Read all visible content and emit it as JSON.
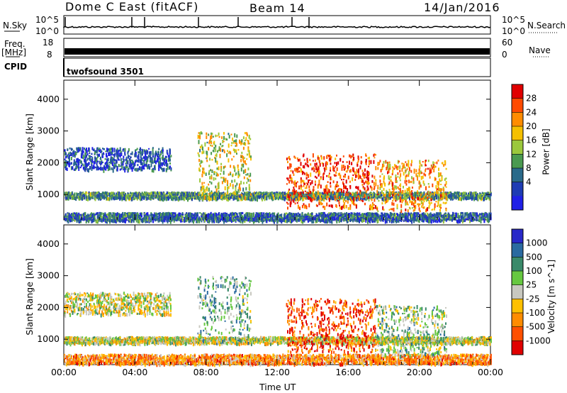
{
  "header": {
    "station": "Dome C East (fitACF)",
    "beam": "Beam 14",
    "date": "14/Jan/2016"
  },
  "aux_panels": {
    "nsky_label": "N.Sky",
    "nsky_ticks": [
      "10^5",
      "10^0"
    ],
    "nsearch_label": "N.Search",
    "nsearch_ticks": [
      "10^5",
      "10^0"
    ],
    "freq_label_line1": "Freq.",
    "freq_label_line2": "[MHz]",
    "freq_ticks": [
      "18",
      "8"
    ],
    "nave_label": "Nave",
    "nave_ticks": [
      "60",
      "0"
    ],
    "cpid_label": "CPID",
    "cpid_value": "twofsound 3501"
  },
  "chart_data": [
    {
      "type": "heatmap",
      "quantity": "Power",
      "ylabel": "Slant Range [km]",
      "xlabel": "",
      "x_ticks": [
        "00:00",
        "04:00",
        "08:00",
        "12:00",
        "16:00",
        "20:00",
        "00:00"
      ],
      "x_range_hours": [
        0,
        24
      ],
      "y_ticks": [
        1000,
        2000,
        3000,
        4000
      ],
      "ylim": [
        200,
        4600
      ],
      "colorbar": {
        "label": "Power [dB]",
        "ticks": [
          "28",
          "24",
          "20",
          "16",
          "12",
          "8",
          "4"
        ],
        "colors": [
          "#e00000",
          "#ff4a00",
          "#ff8c00",
          "#f5c000",
          "#9bc83c",
          "#4a9a50",
          "#2a6a8a",
          "#1e3cb4",
          "#2020e6"
        ]
      },
      "echo_bands": [
        {
          "t_start": 0,
          "t_end": 24,
          "r_start": 200,
          "r_end": 450,
          "level": 0.25
        },
        {
          "t_start": 0,
          "t_end": 24,
          "r_start": 900,
          "r_end": 1100,
          "level": 0.35
        },
        {
          "t_start": 0,
          "t_end": 6,
          "r_start": 1800,
          "r_end": 2500,
          "level": 0.2
        },
        {
          "t_start": 7.5,
          "t_end": 10.5,
          "r_start": 900,
          "r_end": 3000,
          "level": 0.55
        },
        {
          "t_start": 12.5,
          "t_end": 17.5,
          "r_start": 600,
          "r_end": 2300,
          "level": 0.85
        },
        {
          "t_start": 17.5,
          "t_end": 21.5,
          "r_start": 500,
          "r_end": 2100,
          "level": 0.7
        }
      ]
    },
    {
      "type": "heatmap",
      "quantity": "Velocity",
      "ylabel": "Slant Range [km]",
      "xlabel": "Time UT",
      "x_ticks": [
        "00:00",
        "04:00",
        "08:00",
        "12:00",
        "16:00",
        "20:00",
        "00:00"
      ],
      "x_range_hours": [
        0,
        24
      ],
      "y_ticks": [
        1000,
        2000,
        3000,
        4000
      ],
      "ylim": [
        200,
        4600
      ],
      "colorbar": {
        "label": "Velocity [m s^-1]",
        "ticks": [
          "1000",
          "500",
          "100",
          "25",
          "-25",
          "-100",
          "-500",
          "-1000"
        ],
        "colors": [
          "#2828c8",
          "#2a6aa0",
          "#3a8a6a",
          "#66c840",
          "#c8c8c0",
          "#ffc000",
          "#ff8c00",
          "#ff5000",
          "#e00000"
        ]
      },
      "echo_bands": [
        {
          "t_start": 0,
          "t_end": 24,
          "r_start": 250,
          "r_end": 550,
          "level": 0.3
        },
        {
          "t_start": 0,
          "t_end": 24,
          "r_start": 900,
          "r_end": 1100,
          "level": 0.5
        },
        {
          "t_start": 0,
          "t_end": 6,
          "r_start": 1800,
          "r_end": 2500,
          "level": 0.5
        },
        {
          "t_start": 7.5,
          "t_end": 10.5,
          "r_start": 900,
          "r_end": 3000,
          "level": 0.65
        },
        {
          "t_start": 12.5,
          "t_end": 17.5,
          "r_start": 600,
          "r_end": 2300,
          "level": 0.15
        },
        {
          "t_start": 17.5,
          "t_end": 21.5,
          "r_start": 500,
          "r_end": 2100,
          "level": 0.6
        }
      ]
    }
  ]
}
